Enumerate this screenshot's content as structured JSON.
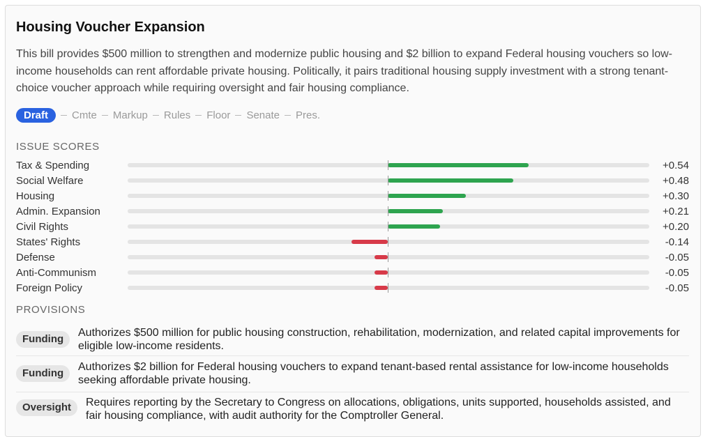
{
  "bill": {
    "title": "Housing Voucher Expansion",
    "description": "This bill provides $500 million to strengthen and modernize public housing and $2 billion to expand Federal housing vouchers so low-income households can rent affordable private housing. Politically, it pairs traditional housing supply investment with a strong tenant-choice voucher approach while requiring oversight and fair housing compliance."
  },
  "stages": {
    "current": "Draft",
    "others": [
      "Cmte",
      "Markup",
      "Rules",
      "Floor",
      "Senate",
      "Pres."
    ]
  },
  "issue_scores": {
    "heading": "ISSUE SCORES",
    "range": [
      -1,
      1
    ],
    "items": [
      {
        "label": "Tax & Spending",
        "score": 0.54,
        "display": "+0.54"
      },
      {
        "label": "Social Welfare",
        "score": 0.48,
        "display": "+0.48"
      },
      {
        "label": "Housing",
        "score": 0.3,
        "display": "+0.30"
      },
      {
        "label": "Admin. Expansion",
        "score": 0.21,
        "display": "+0.21"
      },
      {
        "label": "Civil Rights",
        "score": 0.2,
        "display": "+0.20"
      },
      {
        "label": "States' Rights",
        "score": -0.14,
        "display": "-0.14"
      },
      {
        "label": "Defense",
        "score": -0.05,
        "display": "-0.05"
      },
      {
        "label": "Anti-Communism",
        "score": -0.05,
        "display": "-0.05"
      },
      {
        "label": "Foreign Policy",
        "score": -0.05,
        "display": "-0.05"
      }
    ],
    "colors": {
      "positive": "#2ea44f",
      "negative": "#d73a49"
    }
  },
  "provisions": {
    "heading": "PROVISIONS",
    "items": [
      {
        "tag": "Funding",
        "text": "Authorizes $500 million for public housing construction, rehabilitation, modernization, and related capital improvements for eligible low-income residents."
      },
      {
        "tag": "Funding",
        "text": "Authorizes $2 billion for Federal housing vouchers to expand tenant-based rental assistance for low-income households seeking affordable private housing."
      },
      {
        "tag": "Oversight",
        "text": "Requires reporting by the Secretary to Congress on allocations, obligations, units supported, households assisted, and fair housing compliance, with audit authority for the Comptroller General."
      }
    ]
  }
}
